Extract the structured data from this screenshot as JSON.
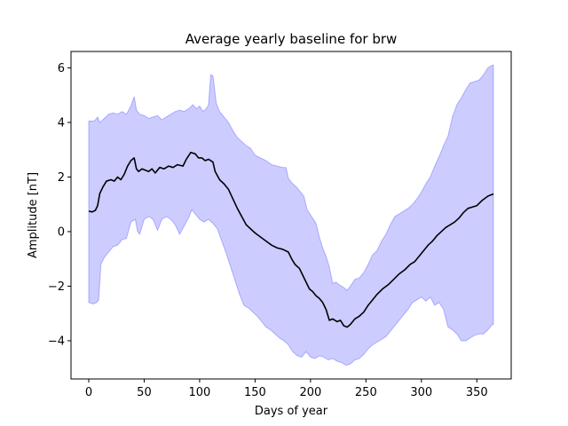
{
  "chart_data": {
    "type": "line",
    "title": "Average yearly baseline for brw",
    "xlabel": "Days of year",
    "ylabel": "Amplitude [nT]",
    "xlim": [
      -16,
      381
    ],
    "ylim": [
      -5.4,
      6.6
    ],
    "xticks": [
      0,
      50,
      100,
      150,
      200,
      250,
      300,
      350
    ],
    "yticks": [
      -4,
      -2,
      0,
      2,
      4,
      6
    ],
    "grid": false,
    "legend": "none",
    "series": [
      {
        "kind": "line",
        "color": "#000000",
        "points": [
          [
            0,
            0.75
          ],
          [
            3,
            0.72
          ],
          [
            6,
            0.78
          ],
          [
            8,
            0.95
          ],
          [
            10,
            1.4
          ],
          [
            13,
            1.65
          ],
          [
            16,
            1.85
          ],
          [
            20,
            1.9
          ],
          [
            23,
            1.85
          ],
          [
            26,
            2.0
          ],
          [
            29,
            1.9
          ],
          [
            32,
            2.1
          ],
          [
            35,
            2.4
          ],
          [
            38,
            2.6
          ],
          [
            41,
            2.7
          ],
          [
            43,
            2.3
          ],
          [
            45,
            2.2
          ],
          [
            48,
            2.3
          ],
          [
            51,
            2.25
          ],
          [
            54,
            2.2
          ],
          [
            57,
            2.3
          ],
          [
            60,
            2.15
          ],
          [
            64,
            2.35
          ],
          [
            68,
            2.3
          ],
          [
            72,
            2.4
          ],
          [
            76,
            2.35
          ],
          [
            80,
            2.45
          ],
          [
            85,
            2.4
          ],
          [
            88,
            2.65
          ],
          [
            92,
            2.9
          ],
          [
            96,
            2.85
          ],
          [
            99,
            2.7
          ],
          [
            102,
            2.7
          ],
          [
            105,
            2.6
          ],
          [
            108,
            2.65
          ],
          [
            112,
            2.55
          ],
          [
            114,
            2.2
          ],
          [
            118,
            1.9
          ],
          [
            122,
            1.75
          ],
          [
            126,
            1.55
          ],
          [
            130,
            1.2
          ],
          [
            134,
            0.85
          ],
          [
            138,
            0.55
          ],
          [
            142,
            0.25
          ],
          [
            146,
            0.1
          ],
          [
            150,
            -0.05
          ],
          [
            155,
            -0.2
          ],
          [
            160,
            -0.35
          ],
          [
            165,
            -0.5
          ],
          [
            170,
            -0.6
          ],
          [
            175,
            -0.65
          ],
          [
            180,
            -0.75
          ],
          [
            183,
            -1.0
          ],
          [
            186,
            -1.2
          ],
          [
            190,
            -1.35
          ],
          [
            193,
            -1.6
          ],
          [
            196,
            -1.85
          ],
          [
            199,
            -2.1
          ],
          [
            202,
            -2.2
          ],
          [
            205,
            -2.35
          ],
          [
            208,
            -2.45
          ],
          [
            211,
            -2.6
          ],
          [
            214,
            -2.85
          ],
          [
            217,
            -3.25
          ],
          [
            220,
            -3.2
          ],
          [
            224,
            -3.3
          ],
          [
            227,
            -3.25
          ],
          [
            230,
            -3.45
          ],
          [
            233,
            -3.5
          ],
          [
            236,
            -3.4
          ],
          [
            240,
            -3.2
          ],
          [
            244,
            -3.1
          ],
          [
            248,
            -2.95
          ],
          [
            252,
            -2.7
          ],
          [
            256,
            -2.5
          ],
          [
            260,
            -2.3
          ],
          [
            265,
            -2.1
          ],
          [
            270,
            -1.95
          ],
          [
            275,
            -1.75
          ],
          [
            280,
            -1.55
          ],
          [
            285,
            -1.4
          ],
          [
            290,
            -1.2
          ],
          [
            294,
            -1.1
          ],
          [
            298,
            -0.9
          ],
          [
            302,
            -0.7
          ],
          [
            306,
            -0.5
          ],
          [
            310,
            -0.35
          ],
          [
            314,
            -0.15
          ],
          [
            318,
            0.0
          ],
          [
            322,
            0.15
          ],
          [
            326,
            0.25
          ],
          [
            330,
            0.35
          ],
          [
            334,
            0.5
          ],
          [
            338,
            0.7
          ],
          [
            342,
            0.85
          ],
          [
            346,
            0.9
          ],
          [
            350,
            0.95
          ],
          [
            355,
            1.15
          ],
          [
            360,
            1.3
          ],
          [
            365,
            1.38
          ]
        ]
      },
      {
        "kind": "band",
        "color": "#0000ff",
        "fill_opacity": 0.2,
        "upper": [
          [
            0,
            4.05
          ],
          [
            5,
            4.05
          ],
          [
            8,
            4.2
          ],
          [
            10,
            4.0
          ],
          [
            14,
            4.15
          ],
          [
            18,
            4.3
          ],
          [
            22,
            4.35
          ],
          [
            26,
            4.3
          ],
          [
            30,
            4.4
          ],
          [
            34,
            4.3
          ],
          [
            38,
            4.6
          ],
          [
            41,
            4.95
          ],
          [
            43,
            4.45
          ],
          [
            46,
            4.3
          ],
          [
            50,
            4.25
          ],
          [
            54,
            4.15
          ],
          [
            58,
            4.2
          ],
          [
            62,
            4.25
          ],
          [
            66,
            4.1
          ],
          [
            70,
            4.2
          ],
          [
            74,
            4.3
          ],
          [
            78,
            4.4
          ],
          [
            82,
            4.45
          ],
          [
            86,
            4.4
          ],
          [
            90,
            4.5
          ],
          [
            94,
            4.65
          ],
          [
            97,
            4.5
          ],
          [
            100,
            4.6
          ],
          [
            103,
            4.4
          ],
          [
            106,
            4.5
          ],
          [
            108,
            4.65
          ],
          [
            110,
            5.75
          ],
          [
            112,
            5.7
          ],
          [
            113,
            5.4
          ],
          [
            115,
            4.7
          ],
          [
            118,
            4.4
          ],
          [
            122,
            4.2
          ],
          [
            126,
            4.0
          ],
          [
            130,
            3.7
          ],
          [
            134,
            3.45
          ],
          [
            138,
            3.3
          ],
          [
            142,
            3.15
          ],
          [
            146,
            3.05
          ],
          [
            150,
            2.8
          ],
          [
            155,
            2.7
          ],
          [
            160,
            2.6
          ],
          [
            165,
            2.45
          ],
          [
            170,
            2.4
          ],
          [
            175,
            2.35
          ],
          [
            178,
            2.35
          ],
          [
            180,
            1.95
          ],
          [
            184,
            1.75
          ],
          [
            187,
            1.65
          ],
          [
            190,
            1.5
          ],
          [
            194,
            1.3
          ],
          [
            197,
            0.8
          ],
          [
            201,
            0.55
          ],
          [
            205,
            0.3
          ],
          [
            208,
            -0.2
          ],
          [
            211,
            -0.6
          ],
          [
            214,
            -0.9
          ],
          [
            217,
            -1.3
          ],
          [
            220,
            -1.9
          ],
          [
            223,
            -1.85
          ],
          [
            226,
            -1.95
          ],
          [
            230,
            -2.05
          ],
          [
            233,
            -2.15
          ],
          [
            236,
            -2.0
          ],
          [
            240,
            -1.75
          ],
          [
            244,
            -1.7
          ],
          [
            248,
            -1.5
          ],
          [
            252,
            -1.2
          ],
          [
            256,
            -0.85
          ],
          [
            260,
            -0.7
          ],
          [
            264,
            -0.35
          ],
          [
            268,
            -0.1
          ],
          [
            272,
            0.25
          ],
          [
            276,
            0.55
          ],
          [
            280,
            0.65
          ],
          [
            284,
            0.75
          ],
          [
            288,
            0.85
          ],
          [
            292,
            1.0
          ],
          [
            296,
            1.2
          ],
          [
            300,
            1.45
          ],
          [
            304,
            1.75
          ],
          [
            308,
            2.0
          ],
          [
            312,
            2.4
          ],
          [
            316,
            2.75
          ],
          [
            320,
            3.15
          ],
          [
            324,
            3.5
          ],
          [
            328,
            4.2
          ],
          [
            332,
            4.65
          ],
          [
            336,
            4.9
          ],
          [
            340,
            5.2
          ],
          [
            344,
            5.45
          ],
          [
            348,
            5.5
          ],
          [
            352,
            5.55
          ],
          [
            356,
            5.75
          ],
          [
            360,
            6.0
          ],
          [
            364,
            6.1
          ],
          [
            365,
            6.1
          ]
        ],
        "lower": [
          [
            0,
            -2.6
          ],
          [
            4,
            -2.65
          ],
          [
            7,
            -2.6
          ],
          [
            9,
            -2.5
          ],
          [
            11,
            -1.2
          ],
          [
            14,
            -0.95
          ],
          [
            18,
            -0.75
          ],
          [
            22,
            -0.55
          ],
          [
            26,
            -0.5
          ],
          [
            30,
            -0.3
          ],
          [
            34,
            -0.25
          ],
          [
            38,
            0.35
          ],
          [
            42,
            0.45
          ],
          [
            44,
            0.0
          ],
          [
            46,
            -0.1
          ],
          [
            50,
            0.45
          ],
          [
            54,
            0.55
          ],
          [
            58,
            0.45
          ],
          [
            62,
            0.05
          ],
          [
            66,
            0.45
          ],
          [
            70,
            0.55
          ],
          [
            74,
            0.45
          ],
          [
            78,
            0.25
          ],
          [
            82,
            -0.1
          ],
          [
            86,
            0.2
          ],
          [
            90,
            0.5
          ],
          [
            93,
            0.8
          ],
          [
            96,
            0.65
          ],
          [
            100,
            0.45
          ],
          [
            104,
            0.35
          ],
          [
            108,
            0.45
          ],
          [
            112,
            0.3
          ],
          [
            116,
            0.1
          ],
          [
            120,
            -0.35
          ],
          [
            124,
            -0.8
          ],
          [
            128,
            -1.3
          ],
          [
            132,
            -1.8
          ],
          [
            136,
            -2.3
          ],
          [
            140,
            -2.7
          ],
          [
            144,
            -2.8
          ],
          [
            148,
            -2.95
          ],
          [
            152,
            -3.1
          ],
          [
            156,
            -3.3
          ],
          [
            160,
            -3.5
          ],
          [
            164,
            -3.6
          ],
          [
            168,
            -3.75
          ],
          [
            172,
            -3.9
          ],
          [
            176,
            -4.0
          ],
          [
            180,
            -4.15
          ],
          [
            184,
            -4.4
          ],
          [
            188,
            -4.55
          ],
          [
            192,
            -4.6
          ],
          [
            196,
            -4.4
          ],
          [
            200,
            -4.6
          ],
          [
            204,
            -4.65
          ],
          [
            208,
            -4.55
          ],
          [
            212,
            -4.6
          ],
          [
            216,
            -4.7
          ],
          [
            220,
            -4.65
          ],
          [
            224,
            -4.75
          ],
          [
            228,
            -4.8
          ],
          [
            232,
            -4.9
          ],
          [
            236,
            -4.85
          ],
          [
            240,
            -4.7
          ],
          [
            244,
            -4.65
          ],
          [
            248,
            -4.5
          ],
          [
            252,
            -4.3
          ],
          [
            256,
            -4.15
          ],
          [
            260,
            -4.05
          ],
          [
            264,
            -3.95
          ],
          [
            268,
            -3.85
          ],
          [
            272,
            -3.65
          ],
          [
            276,
            -3.45
          ],
          [
            280,
            -3.25
          ],
          [
            284,
            -3.05
          ],
          [
            288,
            -2.85
          ],
          [
            292,
            -2.6
          ],
          [
            296,
            -2.5
          ],
          [
            300,
            -2.4
          ],
          [
            304,
            -2.55
          ],
          [
            308,
            -2.4
          ],
          [
            312,
            -2.7
          ],
          [
            316,
            -2.6
          ],
          [
            320,
            -2.85
          ],
          [
            324,
            -3.5
          ],
          [
            328,
            -3.6
          ],
          [
            332,
            -3.75
          ],
          [
            336,
            -4.0
          ],
          [
            340,
            -4.0
          ],
          [
            344,
            -3.9
          ],
          [
            348,
            -3.8
          ],
          [
            352,
            -3.75
          ],
          [
            356,
            -3.75
          ],
          [
            360,
            -3.6
          ],
          [
            364,
            -3.4
          ],
          [
            365,
            -3.4
          ]
        ]
      }
    ]
  }
}
